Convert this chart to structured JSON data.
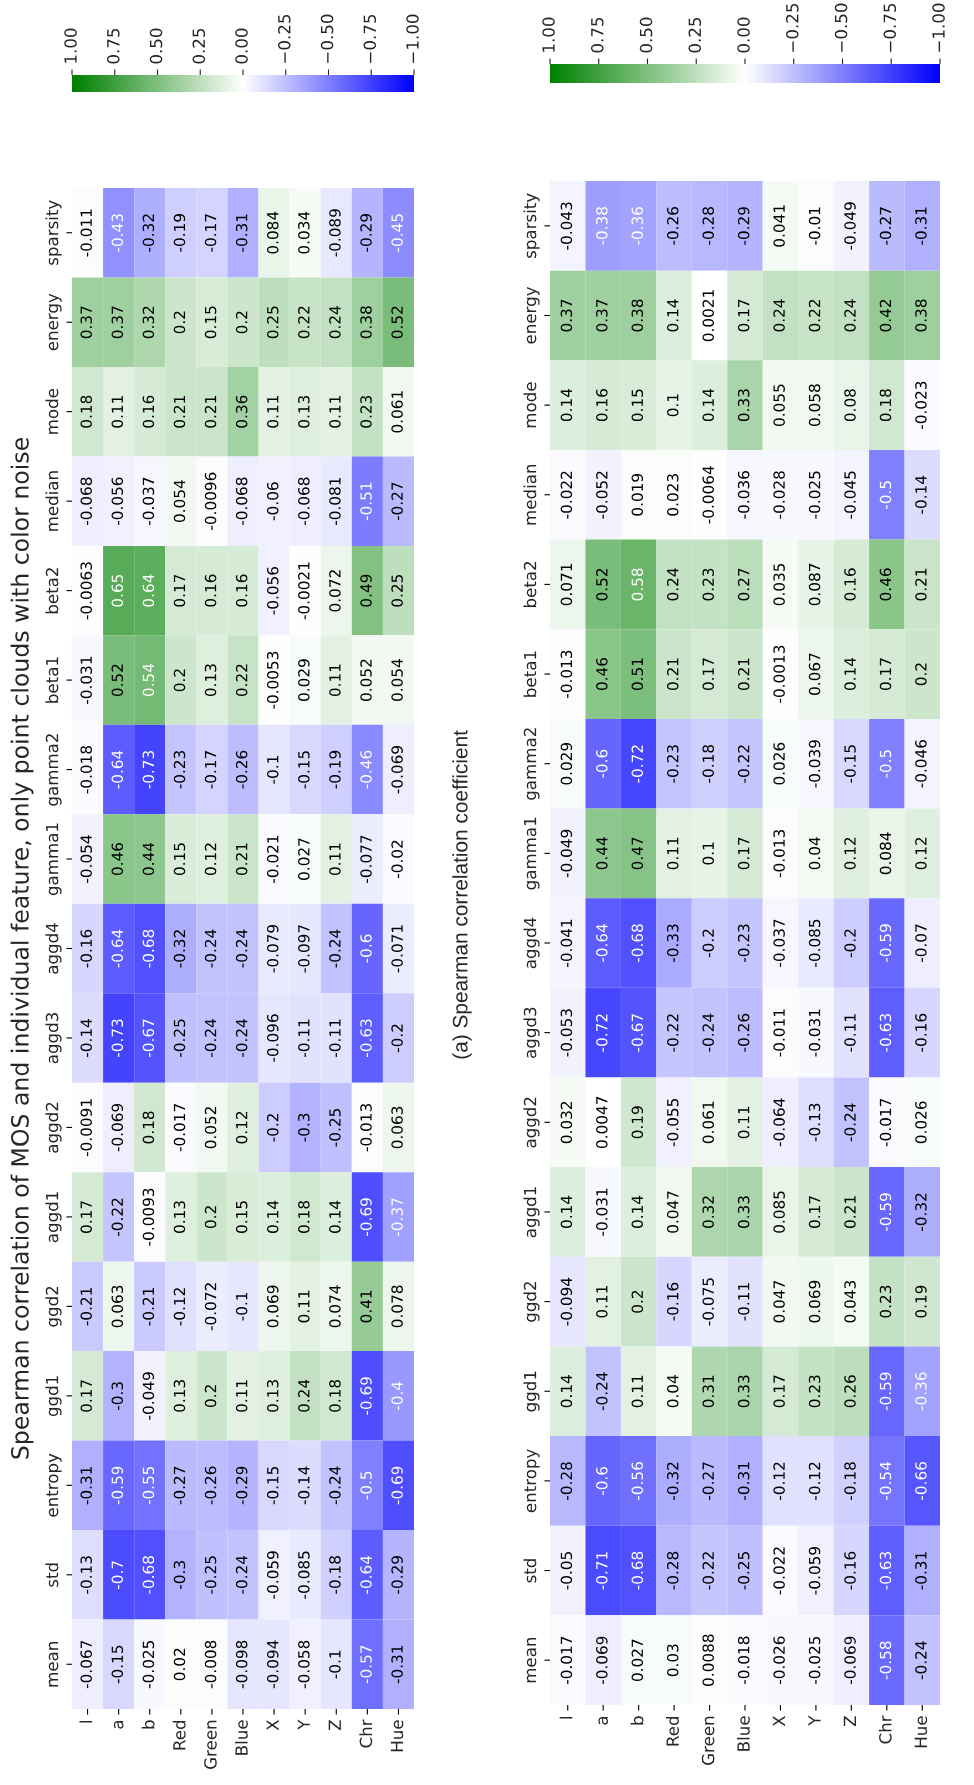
{
  "chart_data": [
    {
      "type": "heatmap",
      "title": "Spearman correlation of MOS and individual feature, only point clouds with color noise",
      "annotations": [
        "(a) Spearman correlation coefficient"
      ],
      "categories": [
        "l",
        "a",
        "b",
        "Red",
        "Green",
        "Blue",
        "X",
        "Y",
        "Z",
        "Chr",
        "Hue"
      ],
      "y_categories": [
        "sparsity",
        "energy",
        "mode",
        "median",
        "beta2",
        "beta1",
        "gamma2",
        "gamma1",
        "aggd4",
        "aggd3",
        "aggd2",
        "aggd1",
        "ggd2",
        "ggd1",
        "entropy",
        "std",
        "mean"
      ],
      "cells": [
        [
          -0.011,
          -0.43,
          -0.32,
          -0.19,
          -0.17,
          -0.31,
          0.084,
          0.034,
          -0.089,
          -0.29,
          -0.45
        ],
        [
          0.37,
          0.37,
          0.32,
          0.2,
          0.15,
          0.2,
          0.25,
          0.22,
          0.24,
          0.38,
          0.52
        ],
        [
          0.18,
          0.11,
          0.16,
          0.21,
          0.21,
          0.36,
          0.11,
          0.13,
          0.11,
          0.23,
          0.061
        ],
        [
          -0.068,
          -0.056,
          -0.037,
          0.054,
          -0.0096,
          -0.068,
          -0.06,
          -0.068,
          -0.081,
          -0.51,
          -0.27
        ],
        [
          -0.0063,
          0.65,
          0.64,
          0.17,
          0.16,
          0.16,
          -0.056,
          -0.0021,
          0.072,
          0.49,
          0.25
        ],
        [
          -0.031,
          0.52,
          0.54,
          0.2,
          0.13,
          0.22,
          -0.0053,
          0.029,
          0.11,
          0.052,
          0.054
        ],
        [
          -0.018,
          -0.64,
          -0.73,
          -0.23,
          -0.17,
          -0.26,
          -0.1,
          -0.15,
          -0.19,
          -0.46,
          -0.069
        ],
        [
          -0.054,
          0.46,
          0.44,
          0.15,
          0.12,
          0.21,
          -0.021,
          0.027,
          0.11,
          -0.077,
          -0.02
        ],
        [
          -0.16,
          -0.64,
          -0.68,
          -0.32,
          -0.24,
          -0.24,
          -0.079,
          -0.097,
          -0.24,
          -0.6,
          -0.071
        ],
        [
          -0.14,
          -0.73,
          -0.67,
          -0.25,
          -0.24,
          -0.24,
          -0.096,
          -0.11,
          -0.11,
          -0.63,
          -0.2
        ],
        [
          -0.0091,
          -0.069,
          0.18,
          -0.017,
          0.052,
          0.12,
          -0.2,
          -0.3,
          -0.25,
          -0.013,
          0.063
        ],
        [
          0.17,
          -0.22,
          -0.0093,
          0.13,
          0.2,
          0.15,
          0.14,
          0.18,
          0.14,
          -0.69,
          -0.37
        ],
        [
          -0.21,
          0.063,
          -0.21,
          -0.12,
          -0.072,
          -0.1,
          0.069,
          0.11,
          0.074,
          0.41,
          0.078
        ],
        [
          0.17,
          -0.3,
          -0.049,
          0.13,
          0.2,
          0.11,
          0.13,
          0.24,
          0.18,
          -0.69,
          -0.4
        ],
        [
          -0.31,
          -0.59,
          -0.55,
          -0.27,
          -0.26,
          -0.29,
          -0.15,
          -0.14,
          -0.24,
          -0.5,
          -0.69
        ],
        [
          -0.13,
          -0.7,
          -0.68,
          -0.3,
          -0.25,
          -0.24,
          -0.059,
          -0.085,
          -0.18,
          -0.64,
          -0.29
        ],
        [
          -0.067,
          -0.15,
          -0.025,
          0.02,
          -0.008,
          -0.098,
          -0.094,
          -0.058,
          -0.1,
          -0.57,
          -0.31
        ]
      ],
      "clim": [
        -1,
        1
      ],
      "cticks": [
        {
          "value": 1,
          "label": "1.00"
        },
        {
          "value": 0.75,
          "label": "0.75"
        },
        {
          "value": 0.5,
          "label": "0.50"
        },
        {
          "value": 0.25,
          "label": "0.25"
        },
        {
          "value": 0,
          "label": "0.00"
        },
        {
          "value": -0.25,
          "label": "−0.25"
        },
        {
          "value": -0.5,
          "label": "−0.50"
        },
        {
          "value": -0.75,
          "label": "−0.75"
        },
        {
          "value": -1,
          "label": "−1.00"
        }
      ],
      "data_labels": true
    },
    {
      "type": "heatmap",
      "categories": [
        "l",
        "a",
        "b",
        "Red",
        "Green",
        "Blue",
        "X",
        "Y",
        "Z",
        "Chr",
        "Hue"
      ],
      "y_categories": [
        "sparsity",
        "energy",
        "mode",
        "median",
        "beta2",
        "beta1",
        "gamma2",
        "gamma1",
        "aggd4",
        "aggd3",
        "aggd2",
        "aggd1",
        "ggd2",
        "ggd1",
        "entropy",
        "std",
        "mean"
      ],
      "cells": [
        [
          -0.043,
          -0.38,
          -0.36,
          -0.26,
          -0.28,
          -0.29,
          0.041,
          -0.01,
          -0.049,
          -0.27,
          -0.31
        ],
        [
          0.37,
          0.37,
          0.38,
          0.14,
          0.0021,
          0.17,
          0.24,
          0.22,
          0.24,
          0.42,
          0.38
        ],
        [
          0.14,
          0.16,
          0.15,
          0.1,
          0.14,
          0.33,
          0.055,
          0.058,
          0.08,
          0.18,
          -0.023
        ],
        [
          -0.022,
          -0.052,
          0.019,
          0.023,
          -0.0064,
          -0.036,
          -0.028,
          -0.025,
          -0.045,
          -0.5,
          -0.14
        ],
        [
          0.071,
          0.52,
          0.58,
          0.24,
          0.23,
          0.27,
          0.035,
          0.087,
          0.16,
          0.46,
          0.21
        ],
        [
          -0.013,
          0.46,
          0.51,
          0.21,
          0.17,
          0.21,
          -0.0013,
          0.067,
          0.14,
          0.17,
          0.2
        ],
        [
          0.029,
          -0.6,
          -0.72,
          -0.23,
          -0.18,
          -0.22,
          0.026,
          -0.039,
          -0.15,
          -0.5,
          -0.046
        ],
        [
          -0.049,
          0.44,
          0.47,
          0.11,
          0.1,
          0.17,
          -0.013,
          0.04,
          0.12,
          0.084,
          0.12
        ],
        [
          -0.041,
          -0.64,
          -0.68,
          -0.33,
          -0.2,
          -0.23,
          -0.037,
          -0.085,
          -0.2,
          -0.59,
          -0.07
        ],
        [
          -0.053,
          -0.72,
          -0.67,
          -0.22,
          -0.24,
          -0.26,
          -0.011,
          -0.031,
          -0.11,
          -0.63,
          -0.16
        ],
        [
          0.032,
          0.0047,
          0.19,
          -0.055,
          0.061,
          0.11,
          -0.064,
          -0.13,
          -0.24,
          -0.017,
          0.026
        ],
        [
          0.14,
          -0.031,
          0.14,
          0.047,
          0.32,
          0.33,
          0.085,
          0.17,
          0.21,
          -0.59,
          -0.32
        ],
        [
          -0.094,
          0.11,
          0.2,
          -0.16,
          -0.075,
          -0.11,
          0.047,
          0.069,
          0.043,
          0.23,
          0.19
        ],
        [
          0.14,
          -0.24,
          0.11,
          0.04,
          0.31,
          0.33,
          0.17,
          0.23,
          0.26,
          -0.59,
          -0.36
        ],
        [
          -0.28,
          -0.6,
          -0.56,
          -0.32,
          -0.27,
          -0.31,
          -0.12,
          -0.12,
          -0.18,
          -0.54,
          -0.66
        ],
        [
          -0.05,
          -0.71,
          -0.68,
          -0.28,
          -0.22,
          -0.25,
          -0.022,
          -0.059,
          -0.16,
          -0.63,
          -0.31
        ],
        [
          -0.017,
          -0.069,
          0.027,
          0.03,
          0.0088,
          -0.018,
          -0.026,
          -0.025,
          -0.069,
          -0.58,
          -0.24
        ]
      ],
      "clim": [
        -1,
        1
      ],
      "cticks": [
        {
          "value": 1,
          "label": "1.00"
        },
        {
          "value": 0.75,
          "label": "0.75"
        },
        {
          "value": 0.5,
          "label": "0.50"
        },
        {
          "value": 0.25,
          "label": "0.25"
        },
        {
          "value": 0,
          "label": "0.00"
        },
        {
          "value": -0.25,
          "label": "−0.25"
        },
        {
          "value": -0.5,
          "label": "−0.50"
        },
        {
          "value": -0.75,
          "label": "−0.75"
        },
        {
          "value": -1,
          "label": "−1.00"
        }
      ],
      "data_labels": true
    }
  ]
}
